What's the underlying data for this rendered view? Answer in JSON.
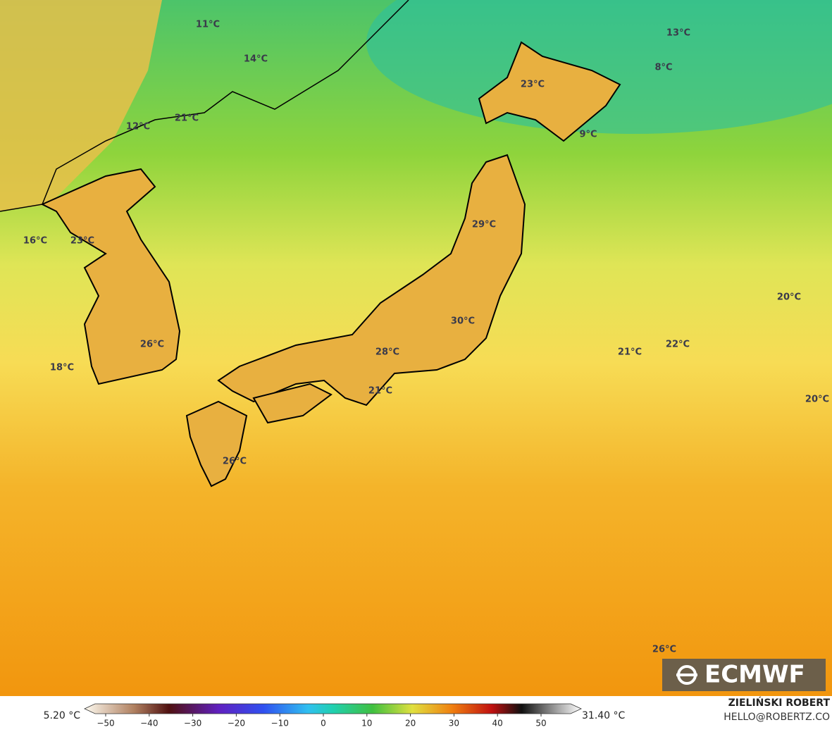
{
  "map": {
    "labels": [
      "11°C",
      "14°C",
      "13°C",
      "8°C",
      "23°C",
      "21°C",
      "12°C",
      "9°C",
      "16°C",
      "23°C",
      "29°C",
      "20°C",
      "30°C",
      "26°C",
      "21°C",
      "22°C",
      "28°C",
      "18°C",
      "21°C",
      "20°C",
      "26°C",
      "26°C"
    ],
    "logo": "ECMWF",
    "credits": {
      "author": "ZIELIŃSKI ROBERT",
      "contact": "HELLO@ROBERTZ.CO"
    },
    "colorbar": {
      "min_label": "5.20 °C",
      "max_label": "31.40 °C",
      "ticks": [
        {
          "value": -50,
          "label": "−50"
        },
        {
          "value": -40,
          "label": "−40"
        },
        {
          "value": -30,
          "label": "−30"
        },
        {
          "value": -20,
          "label": "−20"
        },
        {
          "value": -10,
          "label": "−10"
        },
        0,
        10,
        20,
        30,
        40,
        50
      ]
    }
  }
}
